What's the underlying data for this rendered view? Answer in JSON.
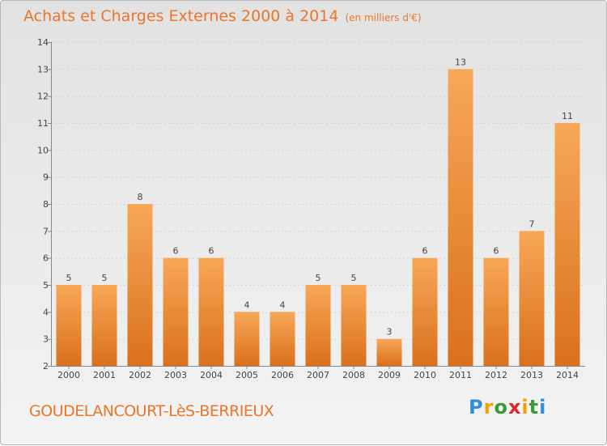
{
  "title": "Achats et Charges Externes 2000 à 2014",
  "unit": "(en milliers d'€)",
  "commune": "GOUDELANCOURT-LèS-BERRIEUX",
  "brand": "Proxiti",
  "colors": {
    "bar_top": "#f7a857",
    "bar_bottom": "#d9701e",
    "title": "#e8762b"
  },
  "chart_data": {
    "type": "bar",
    "title": "Achats et Charges Externes 2000 à 2014",
    "xlabel": "",
    "ylabel": "",
    "categories": [
      "2000",
      "2001",
      "2002",
      "2003",
      "2004",
      "2005",
      "2006",
      "2007",
      "2008",
      "2009",
      "2010",
      "2011",
      "2012",
      "2013",
      "2014"
    ],
    "values": [
      5,
      5,
      8,
      6,
      6,
      4,
      4,
      5,
      5,
      3,
      6,
      13,
      6,
      7,
      11
    ],
    "ylim": [
      2,
      14
    ],
    "yticks": [
      2,
      3,
      4,
      5,
      6,
      7,
      8,
      9,
      10,
      11,
      12,
      13,
      14
    ],
    "grid": true,
    "data_labels": true
  }
}
